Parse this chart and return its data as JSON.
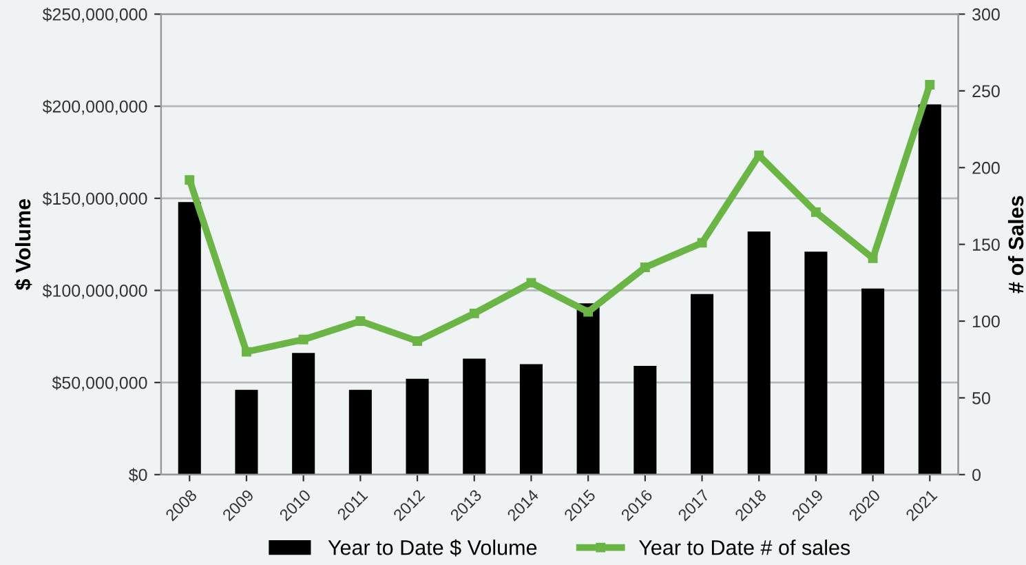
{
  "chart_data": {
    "type": "bar",
    "ylabel": "$ Volume",
    "y2label": "# of Sales",
    "categories": [
      "2008",
      "2009",
      "2010",
      "2011",
      "2012",
      "2013",
      "2014",
      "2015",
      "2016",
      "2017",
      "2018",
      "2019",
      "2020",
      "2021"
    ],
    "series": [
      {
        "name": "Year to Date $ Volume",
        "color": "#000000",
        "values": [
          148000000,
          46000000,
          66000000,
          46000000,
          52000000,
          63000000,
          60000000,
          93000000,
          59000000,
          98000000,
          132000000,
          121000000,
          101000000,
          201000000
        ]
      },
      {
        "name": "Year to Date # of sales",
        "type": "line",
        "axis": "y2",
        "color": "#6ab545",
        "values": [
          192,
          80,
          88,
          100,
          87,
          105,
          125,
          106,
          135,
          151,
          208,
          171,
          141,
          254
        ]
      }
    ],
    "ylim": [
      0,
      250000000
    ],
    "yticks": [
      {
        "value": 0,
        "label": "$0"
      },
      {
        "value": 50000000,
        "label": "$50,000,000"
      },
      {
        "value": 100000000,
        "label": "$100,000,000"
      },
      {
        "value": 150000000,
        "label": "$150,000,000"
      },
      {
        "value": 200000000,
        "label": "$200,000,000"
      },
      {
        "value": 250000000,
        "label": "$250,000,000"
      }
    ],
    "y2lim": [
      0,
      300
    ],
    "y2ticks": [
      0,
      50,
      100,
      150,
      200,
      250,
      300
    ],
    "grid": "y",
    "legend": "bottom",
    "marker": "square",
    "line_style": "solid"
  }
}
